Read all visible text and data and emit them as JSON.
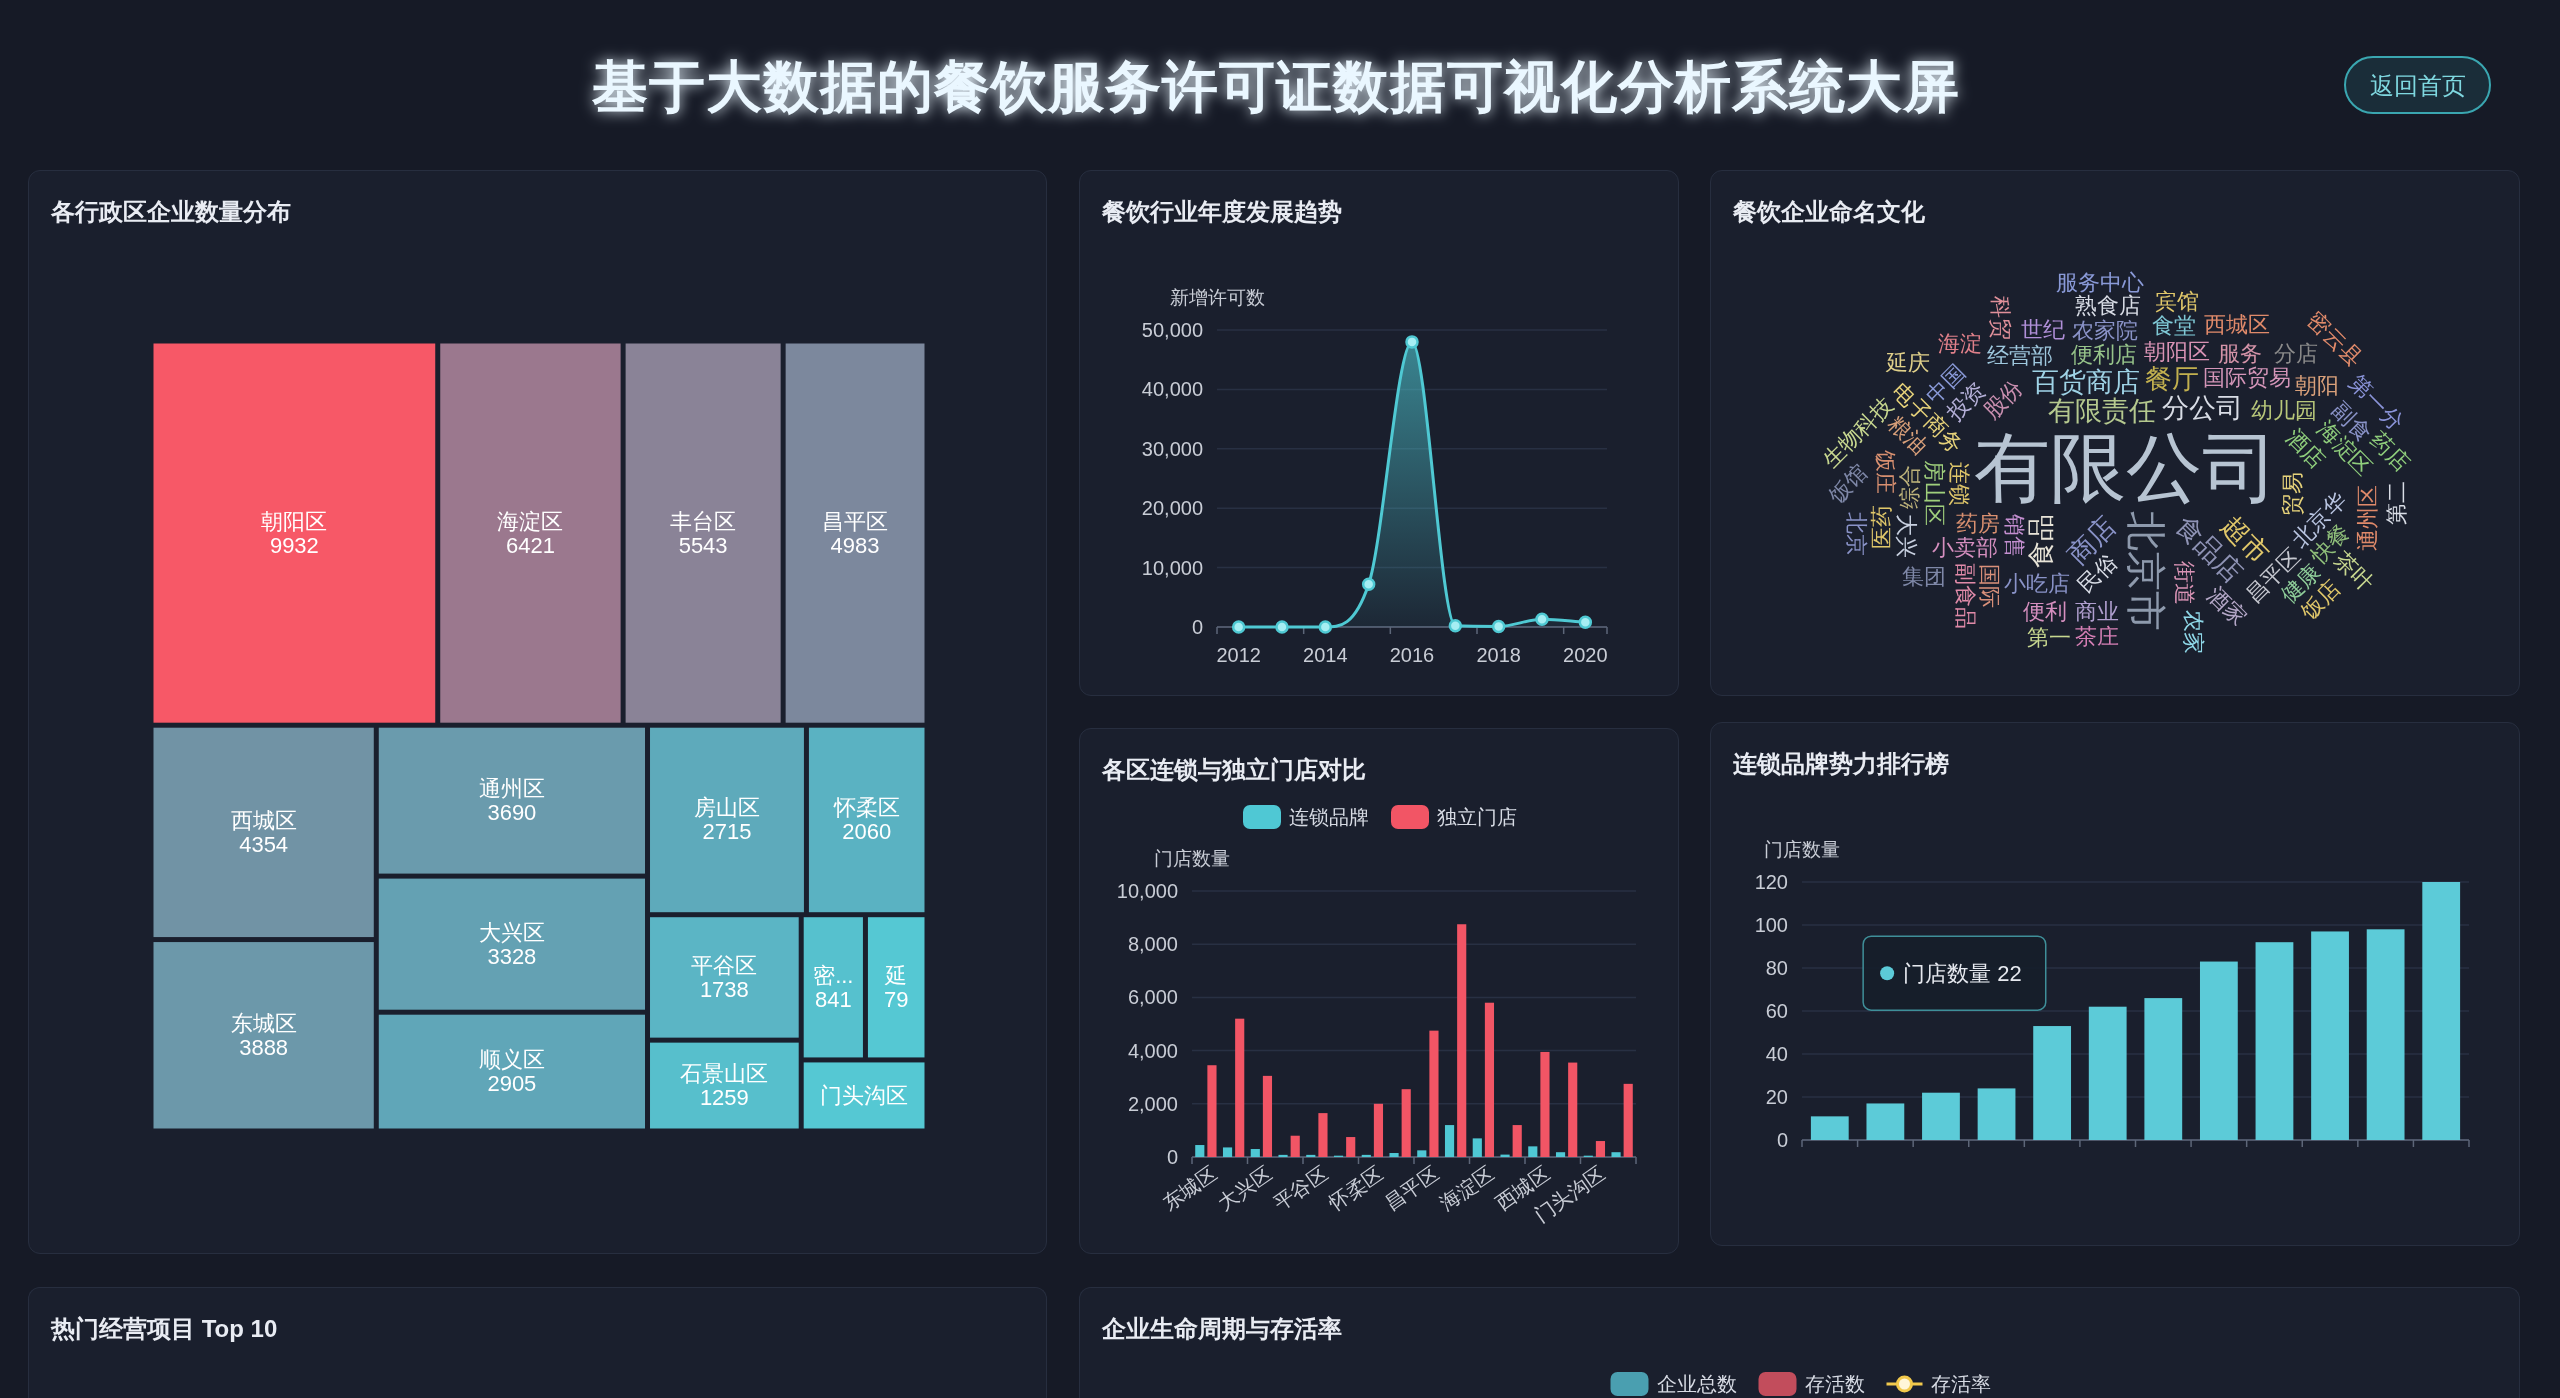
{
  "chart_data": [
    {
      "type": "other",
      "title": "基于大数据的餐饮服务许可证数据可视化分析系统大屏",
      "annotations": [
        "返回首页"
      ]
    },
    {
      "type": "other",
      "title": "各行政区企业数量分布",
      "series": [
        {
          "name": "朝阳区",
          "color": "#f75867",
          "values": [
            9932
          ]
        },
        {
          "name": "海淀区",
          "color": "#9b788e",
          "values": [
            6421
          ]
        },
        {
          "name": "丰台区",
          "color": "#8a8397",
          "values": [
            5543
          ]
        },
        {
          "name": "昌平区",
          "color": "#7c889d",
          "values": [
            4983
          ]
        },
        {
          "name": "西城区",
          "color": "#7193a5",
          "values": [
            4354
          ]
        },
        {
          "name": "东城区",
          "color": "#6c98aa",
          "values": [
            3888
          ]
        },
        {
          "name": "通州区",
          "color": "#6a9bad",
          "values": [
            3690
          ]
        },
        {
          "name": "大兴区",
          "color": "#64a1b3",
          "values": [
            3328
          ]
        },
        {
          "name": "顺义区",
          "color": "#60a6b8",
          "values": [
            2905
          ]
        },
        {
          "name": "房山区",
          "color": "#5eaabb",
          "values": [
            2715
          ]
        },
        {
          "name": "怀柔区",
          "color": "#5ab2c2",
          "values": [
            2060
          ]
        },
        {
          "name": "平谷区",
          "color": "#5bb5c5",
          "values": [
            1738
          ]
        },
        {
          "name": "石景山区",
          "color": "#57bfcc",
          "values": [
            1259
          ]
        },
        {
          "name": "密...",
          "color": "#56c1ce",
          "values": [
            841
          ]
        },
        {
          "name": "延",
          "color": "#55c8d3",
          "values": [
            79
          ]
        },
        {
          "name": "门头沟区"
        }
      ],
      "data_labels": true
    },
    {
      "type": "area",
      "title": "餐饮行业年度发展趋势",
      "ylabel": "新增许可数",
      "categories": [
        "2012",
        null,
        "2014",
        null,
        "2016",
        null,
        "2018",
        null,
        "2020"
      ],
      "series": [
        {
          "color": "#4fc9d3",
          "values": [
            0,
            0,
            0,
            7200,
            48000,
            200,
            100,
            1300,
            800
          ]
        }
      ],
      "ylim": [
        0,
        50000
      ],
      "yticks": [
        0,
        {
          "value": 10000,
          "label": "10,000"
        },
        {
          "value": 20000,
          "label": "20,000"
        },
        {
          "value": 30000,
          "label": "30,000"
        },
        {
          "value": 40000,
          "label": "40,000"
        },
        {
          "value": 50000,
          "label": "50,000"
        }
      ],
      "grid": "y",
      "marker": "circle"
    },
    {
      "type": "other",
      "title": "餐饮企业命名文化",
      "series": [
        {
          "name": "有限公司",
          "color": "#b7c4d2"
        },
        {
          "name": "北京市",
          "color": "#8e9aad"
        },
        {
          "name": "有限责任",
          "color": "#b5c98f"
        },
        {
          "name": "商店",
          "color": "#8a93c8"
        },
        {
          "name": "分公司",
          "color": "#d9dde6"
        },
        {
          "name": "食品店",
          "color": "#8f93b5"
        },
        {
          "name": "百货商店",
          "color": "#9fd3e6"
        },
        {
          "name": "食品",
          "color": "#e8e4d8"
        },
        {
          "name": "超市",
          "color": "#e0c76a"
        },
        {
          "name": "餐厅",
          "color": "#c2b04f"
        },
        {
          "name": "股份",
          "color": "#c98fb0"
        },
        {
          "name": "销售",
          "color": "#c48fd0"
        },
        {
          "name": "便利店",
          "color": "#97c48a"
        },
        {
          "name": "连锁",
          "color": "#e0c76a"
        },
        {
          "name": "国际贸易",
          "color": "#d495b8"
        },
        {
          "name": "民俗",
          "color": "#d9dde6"
        },
        {
          "name": "幼儿园",
          "color": "#b8c77a"
        },
        {
          "name": "酒店",
          "color": "#8fce7c"
        },
        {
          "name": "药房",
          "color": "#d99070"
        },
        {
          "name": "贸易",
          "color": "#e6d27a"
        },
        {
          "name": "电子商务",
          "color": "#e6d27a"
        },
        {
          "name": "朝阳区",
          "color": "#d993b5"
        },
        {
          "name": "投资",
          "color": "#b5b0d8"
        },
        {
          "name": "街道",
          "color": "#d993b5"
        },
        {
          "name": "小吃店",
          "color": "#8a93c8"
        },
        {
          "name": "房山区",
          "color": "#9fcf7c"
        },
        {
          "name": "小卖部",
          "color": "#d58fbf"
        },
        {
          "name": "北京华",
          "color": "#b8c4e0"
        },
        {
          "name": "经营部",
          "color": "#9fc8de"
        },
        {
          "name": "海淀区",
          "color": "#8fce7c"
        },
        {
          "name": "服务",
          "color": "#d493a8"
        },
        {
          "name": "综合",
          "color": "#bdb27a"
        },
        {
          "name": "粮油",
          "color": "#d9a07a"
        },
        {
          "name": "农家院",
          "color": "#8a93c8"
        },
        {
          "name": "昌平区",
          "color": "#c6c8d0"
        },
        {
          "name": "国际",
          "color": "#d9907a"
        },
        {
          "name": "食堂",
          "color": "#7fc9d6"
        },
        {
          "name": "饭庄",
          "color": "#d99070"
        },
        {
          "name": "朝阳",
          "color": "#d9a07a"
        },
        {
          "name": "中国",
          "color": "#8a9ad8"
        },
        {
          "name": "商业",
          "color": "#b09fcf"
        },
        {
          "name": "副食",
          "color": "#8a93c8"
        },
        {
          "name": "世纪",
          "color": "#b08fd8"
        },
        {
          "name": "通州区",
          "color": "#e08a6a"
        },
        {
          "name": "酒家",
          "color": "#b5a8c8"
        },
        {
          "name": "西城区",
          "color": "#e08a6a"
        },
        {
          "name": "快餐",
          "color": "#8fbf7a"
        },
        {
          "name": "大兴",
          "color": "#c8d0e0"
        },
        {
          "name": "便利",
          "color": "#d58fbf"
        },
        {
          "name": "副食品",
          "color": "#e08aa8"
        },
        {
          "name": "分店",
          "color": "#8a8a8a"
        },
        {
          "name": "健康",
          "color": "#8fce9a"
        },
        {
          "name": "海淀",
          "color": "#e0808a"
        },
        {
          "name": "第一分",
          "color": "#8a93d8"
        },
        {
          "name": "熟食店",
          "color": "#d9dde6"
        },
        {
          "name": "医药",
          "color": "#e0c76a"
        },
        {
          "name": "药店",
          "color": "#8fce7c"
        },
        {
          "name": "集团",
          "color": "#7f88a8"
        },
        {
          "name": "生物科技",
          "color": "#c8d890"
        },
        {
          "name": "科贸",
          "color": "#e0909a"
        },
        {
          "name": "宾馆",
          "color": "#e0c76a"
        },
        {
          "name": "农家",
          "color": "#8fd8e8"
        },
        {
          "name": "茶庄",
          "color": "#d57fb5"
        },
        {
          "name": "饭馆",
          "color": "#7f88a8"
        },
        {
          "name": "延庆",
          "color": "#e0d08a"
        },
        {
          "name": "茶叶",
          "color": "#c8d890"
        },
        {
          "name": "服务中心",
          "color": "#8a9ad8"
        },
        {
          "name": "第二",
          "color": "#d9dde6"
        },
        {
          "name": "密云县",
          "color": "#e08a6a"
        },
        {
          "name": "第一",
          "color": "#c8d890"
        },
        {
          "name": "饭店",
          "color": "#e0c76a"
        },
        {
          "name": "北京",
          "color": "#8a93c8"
        }
      ]
    },
    {
      "type": "bar",
      "title": "各区连锁与独立门店对比",
      "ylabel": "门店数量",
      "categories": [
        "东城区",
        null,
        "大兴区",
        null,
        "平谷区",
        null,
        "怀柔区",
        null,
        "昌平区",
        null,
        "海淀区",
        null,
        "西城区",
        null,
        "门头沟区",
        null
      ],
      "series": [
        {
          "name": "连锁品牌",
          "color": "#4fc8d4",
          "values": [
            450,
            360,
            300,
            80,
            80,
            50,
            80,
            150,
            250,
            1200,
            700,
            90,
            400,
            180,
            50,
            180
          ]
        },
        {
          "name": "独立门店",
          "color": "#f25565",
          "values": [
            3450,
            5200,
            3050,
            800,
            1650,
            750,
            2000,
            2550,
            4750,
            8750,
            5800,
            1200,
            3950,
            3550,
            600,
            2750
          ]
        }
      ],
      "ylim": [
        0,
        10000
      ],
      "yticks": [
        0,
        {
          "value": 2000,
          "label": "2,000"
        },
        {
          "value": 4000,
          "label": "4,000"
        },
        {
          "value": 6000,
          "label": "6,000"
        },
        {
          "value": 8000,
          "label": "8,000"
        },
        {
          "value": 10000,
          "label": "10,000"
        }
      ],
      "grid": "y",
      "legend": "top"
    },
    {
      "type": "bar",
      "title": "连锁品牌势力排行榜",
      "ylabel": "门店数量",
      "categories": [
        null,
        null,
        null,
        null,
        null,
        null,
        null,
        null,
        null,
        null,
        null,
        null
      ],
      "series": [
        {
          "color": "#5ccbd8",
          "values": [
            11,
            17,
            22,
            24,
            53,
            62,
            66,
            83,
            92,
            97,
            98,
            120
          ]
        }
      ],
      "ylim": [
        0,
        120
      ],
      "yticks": [
        0,
        20,
        40,
        60,
        80,
        100,
        120
      ],
      "grid": "y",
      "annotations": [
        "门店数量 22"
      ]
    },
    {
      "type": "other",
      "title": "热门经营项目 Top 10"
    },
    {
      "type": "other",
      "title": "企业生命周期与存活率",
      "series": [
        {
          "name": "企业总数",
          "type": "bar",
          "color": "#4a9fb0"
        },
        {
          "name": "存活数",
          "type": "bar",
          "color": "#c24d5c"
        },
        {
          "name": "存活率",
          "type": "line",
          "color": "#f2c94c"
        }
      ],
      "legend": "top"
    }
  ]
}
